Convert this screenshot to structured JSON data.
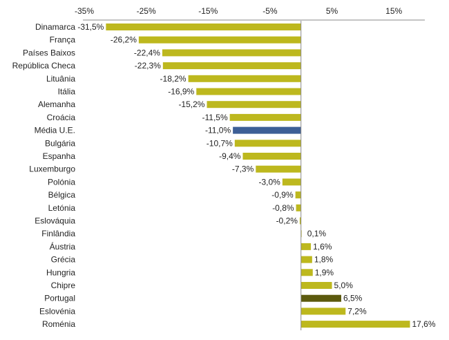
{
  "chart_data": {
    "type": "bar",
    "orientation": "horizontal",
    "title": "",
    "xlabel": "",
    "ylabel": "",
    "xlim": [
      -35,
      20
    ],
    "x_ticks": [
      -35,
      -25,
      -15,
      -5,
      5,
      15
    ],
    "x_tick_labels": [
      "-35%",
      "-25%",
      "-15%",
      "-5%",
      "5%",
      "15%"
    ],
    "x_axis_position": "top",
    "grid": false,
    "legend": "none",
    "categories": [
      "Dinamarca",
      "França",
      "Países Baixos",
      "República Checa",
      "Lituânia",
      "Itália",
      "Alemanha",
      "Croácia",
      "Média U.E.",
      "Bulgária",
      "Espanha",
      "Luxemburgo",
      "Polónia",
      "Bélgica",
      "Letónia",
      "Eslováquia",
      "Finlândia",
      "Áustria",
      "Grécia",
      "Hungria",
      "Chipre",
      "Portugal",
      "Eslovénia",
      "Roménia"
    ],
    "values": [
      -31.5,
      -26.2,
      -22.4,
      -22.3,
      -18.2,
      -16.9,
      -15.2,
      -11.5,
      -11.0,
      -10.7,
      -9.4,
      -7.3,
      -3.0,
      -0.9,
      -0.8,
      -0.2,
      0.1,
      1.6,
      1.8,
      1.9,
      5.0,
      6.5,
      7.2,
      17.6
    ],
    "value_labels": [
      "-31,5%",
      "-26,2%",
      "-22,4%",
      "-22,3%",
      "-18,2%",
      "-16,9%",
      "-15,2%",
      "-11,5%",
      "-11,0%",
      "-10,7%",
      "-9,4%",
      "-7,3%",
      "-3,0%",
      "-0,9%",
      "-0,8%",
      "-0,2%",
      "0,1%",
      "1,6%",
      "1,8%",
      "1,9%",
      "5,0%",
      "6,5%",
      "7,2%",
      "17,6%"
    ],
    "colors": {
      "default": "#BDB81E",
      "highlights": {
        "Média U.E.": "#3D5F96",
        "Portugal": "#5C5A0E"
      }
    }
  }
}
